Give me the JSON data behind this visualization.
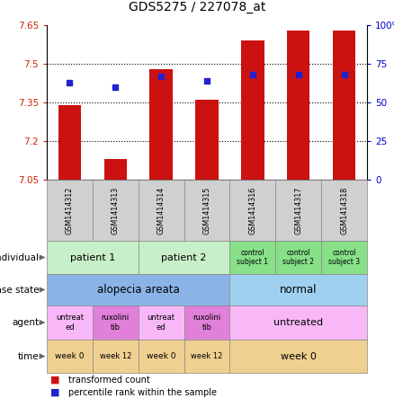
{
  "title": "GDS5275 / 227078_at",
  "samples": [
    "GSM1414312",
    "GSM1414313",
    "GSM1414314",
    "GSM1414315",
    "GSM1414316",
    "GSM1414317",
    "GSM1414318"
  ],
  "red_values": [
    7.34,
    7.13,
    7.48,
    7.36,
    7.59,
    7.63,
    7.63
  ],
  "blue_values": [
    0.63,
    0.6,
    0.67,
    0.64,
    0.68,
    0.68,
    0.68
  ],
  "y_min": 7.05,
  "y_max": 7.65,
  "y_ticks": [
    7.05,
    7.2,
    7.35,
    7.5,
    7.65
  ],
  "y2_ticks": [
    0,
    25,
    50,
    75,
    100
  ],
  "y2_tick_labels": [
    "0",
    "25",
    "50",
    "75",
    "100%"
  ],
  "dotted_lines": [
    7.5,
    7.35,
    7.2
  ],
  "individual_color_patient": "#c8f0c8",
  "individual_color_control": "#88e088",
  "disease_color_aa": "#8ab4e8",
  "disease_color_normal": "#a0d0f0",
  "agent_color_untreated": "#f8b8f8",
  "agent_color_ruxo": "#e080d8",
  "time_color": "#f0d090",
  "bar_color": "#cc1111",
  "dot_color": "#2222cc",
  "axis_label_color_left": "#cc2200",
  "axis_label_color_right": "#0000cc",
  "legend_red_label": "transformed count",
  "legend_blue_label": "percentile rank within the sample",
  "row_labels": [
    "individual",
    "disease state",
    "agent",
    "time"
  ]
}
